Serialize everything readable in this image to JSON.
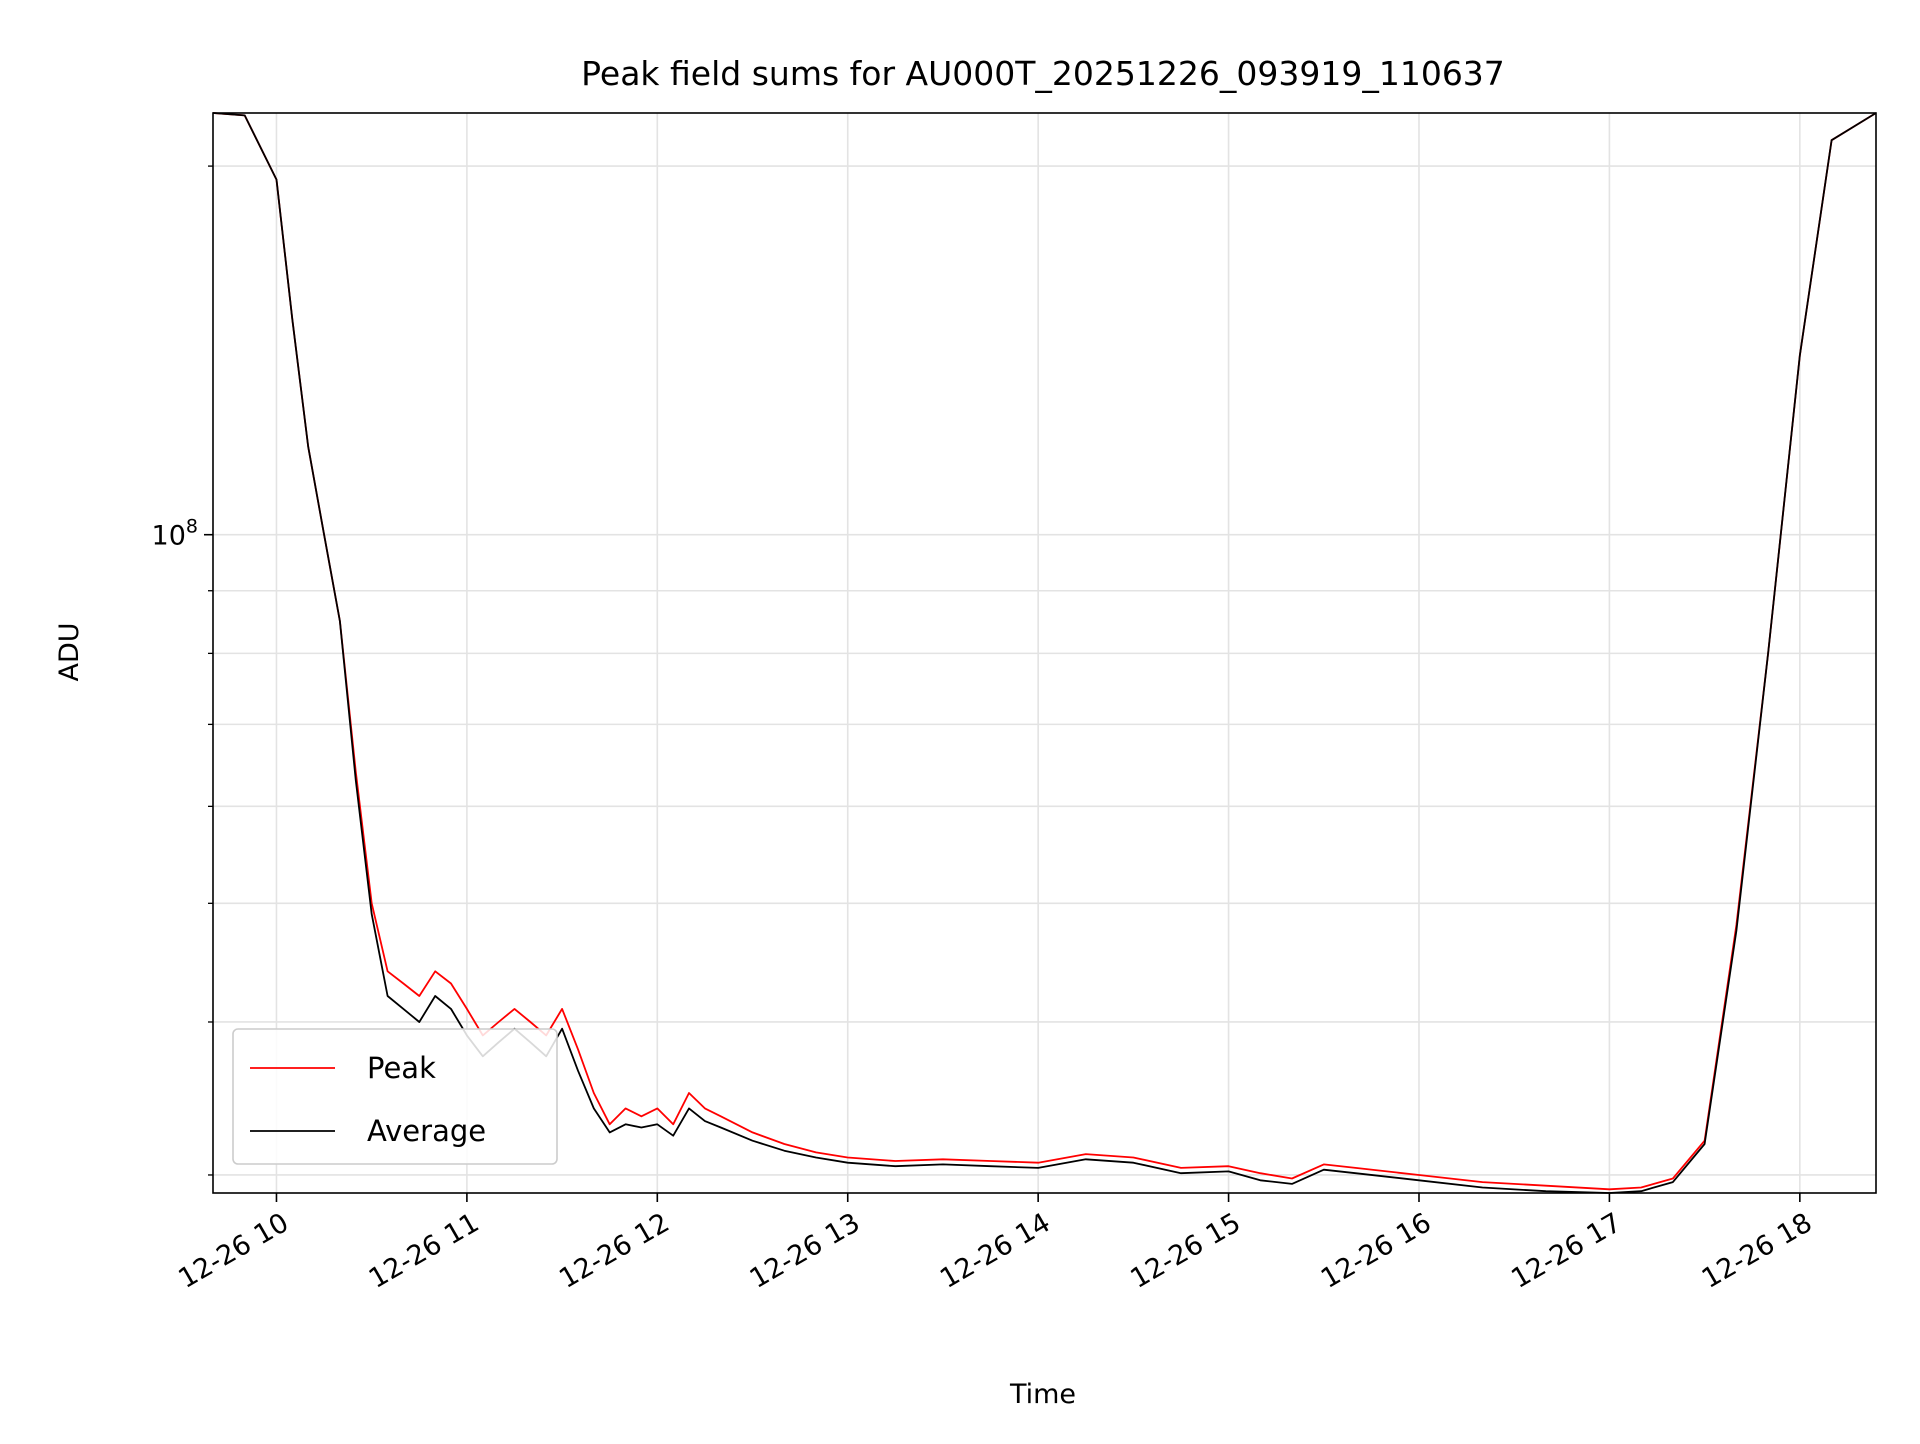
{
  "chart_data": {
    "type": "line",
    "title": "Peak field sums for AU000T_20251226_093919_110637",
    "xlabel": "Time",
    "ylabel": "ADU",
    "y_scale": "log",
    "grid": true,
    "legend_position": "lower-left",
    "xlim": [
      "12-26 09:40",
      "12-26 18:24"
    ],
    "ylim": [
      29000000,
      221000000
    ],
    "x_ticks": [
      "12-26 10",
      "12-26 11",
      "12-26 12",
      "12-26 13",
      "12-26 14",
      "12-26 15",
      "12-26 16",
      "12-26 17",
      "12-26 18"
    ],
    "y_major_ticks": [
      {
        "value": 100000000,
        "base": "10",
        "exp": "8"
      }
    ],
    "y_minor_ticks": [
      30000000,
      40000000,
      50000000,
      60000000,
      70000000,
      80000000,
      90000000,
      200000000
    ],
    "x": [
      "12-26 09:40",
      "12-26 09:50",
      "12-26 10:00",
      "12-26 10:05",
      "12-26 10:10",
      "12-26 10:15",
      "12-26 10:20",
      "12-26 10:25",
      "12-26 10:30",
      "12-26 10:35",
      "12-26 10:40",
      "12-26 10:45",
      "12-26 10:50",
      "12-26 10:55",
      "12-26 11:00",
      "12-26 11:05",
      "12-26 11:10",
      "12-26 11:15",
      "12-26 11:20",
      "12-26 11:25",
      "12-26 11:30",
      "12-26 11:35",
      "12-26 11:40",
      "12-26 11:45",
      "12-26 11:50",
      "12-26 11:55",
      "12-26 12:00",
      "12-26 12:05",
      "12-26 12:10",
      "12-26 12:15",
      "12-26 12:20",
      "12-26 12:30",
      "12-26 12:40",
      "12-26 12:50",
      "12-26 13:00",
      "12-26 13:15",
      "12-26 13:30",
      "12-26 13:45",
      "12-26 14:00",
      "12-26 14:15",
      "12-26 14:30",
      "12-26 14:45",
      "12-26 15:00",
      "12-26 15:10",
      "12-26 15:20",
      "12-26 15:30",
      "12-26 15:40",
      "12-26 16:00",
      "12-26 16:20",
      "12-26 16:40",
      "12-26 17:00",
      "12-26 17:10",
      "12-26 17:20",
      "12-26 17:30",
      "12-26 17:40",
      "12-26 17:50",
      "12-26 18:00",
      "12-26 18:10",
      "12-26 18:24"
    ],
    "series": [
      {
        "name": "Peak",
        "color": "#ff0000",
        "values": [
          221000000,
          220000000,
          195000000,
          150000000,
          118000000,
          100000000,
          85000000,
          64000000,
          50000000,
          44000000,
          43000000,
          42000000,
          44000000,
          43000000,
          41000000,
          39000000,
          40000000,
          41000000,
          40000000,
          39000000,
          41000000,
          38000000,
          35000000,
          33000000,
          34000000,
          33500000,
          34000000,
          33000000,
          35000000,
          34000000,
          33500000,
          32500000,
          31800000,
          31300000,
          31000000,
          30800000,
          30900000,
          30800000,
          30700000,
          31200000,
          31000000,
          30400000,
          30500000,
          30100000,
          29800000,
          30600000,
          30400000,
          30000000,
          29600000,
          29400000,
          29200000,
          29300000,
          29800000,
          32000000,
          48000000,
          80000000,
          140000000,
          210000000,
          221000000
        ]
      },
      {
        "name": "Average",
        "color": "#000000",
        "values": [
          221000000,
          220000000,
          195000000,
          150000000,
          118000000,
          100000000,
          85000000,
          63000000,
          49000000,
          42000000,
          41000000,
          40000000,
          42000000,
          41000000,
          39000000,
          37500000,
          38500000,
          39500000,
          38500000,
          37500000,
          39500000,
          36500000,
          34000000,
          32500000,
          33000000,
          32800000,
          33000000,
          32300000,
          34000000,
          33200000,
          32800000,
          32000000,
          31400000,
          31000000,
          30700000,
          30500000,
          30600000,
          30500000,
          30400000,
          30900000,
          30700000,
          30100000,
          30200000,
          29700000,
          29500000,
          30300000,
          30100000,
          29700000,
          29300000,
          29100000,
          29000000,
          29100000,
          29600000,
          31800000,
          47500000,
          80000000,
          140000000,
          210000000,
          221000000
        ]
      }
    ]
  }
}
